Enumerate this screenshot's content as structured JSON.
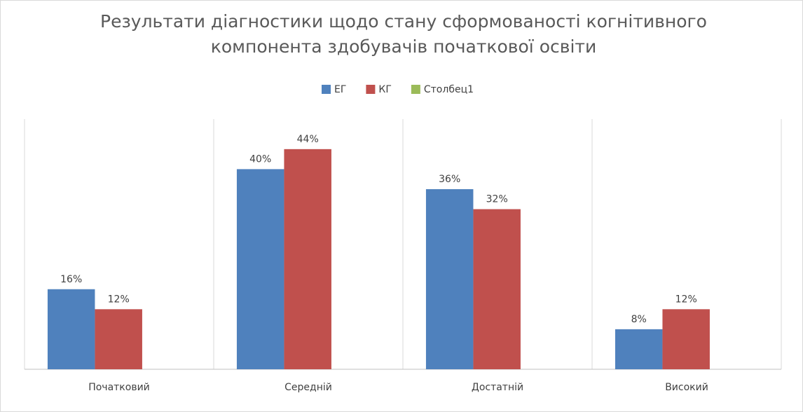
{
  "chart_data": {
    "type": "bar",
    "title": [
      "Результати діагностики щодо стану сформованості когнітивного",
      "компонента здобувачів початкової освіти"
    ],
    "categories": [
      "Початковий",
      "Середній",
      "Достатній",
      "Високий"
    ],
    "series": [
      {
        "name": "ЕГ",
        "color": "#4f81bd",
        "values": [
          16,
          40,
          36,
          8
        ],
        "value_labels": [
          "16%",
          "40%",
          "36%",
          "8%"
        ]
      },
      {
        "name": "КГ",
        "color": "#c0504d",
        "values": [
          12,
          44,
          32,
          12
        ],
        "value_labels": [
          "12%",
          "44%",
          "32%",
          "12%"
        ]
      },
      {
        "name": "Столбец1",
        "color": "#9bbb59",
        "values": [
          null,
          null,
          null,
          null
        ]
      }
    ],
    "ylim": [
      0,
      50
    ],
    "legend": "top"
  }
}
